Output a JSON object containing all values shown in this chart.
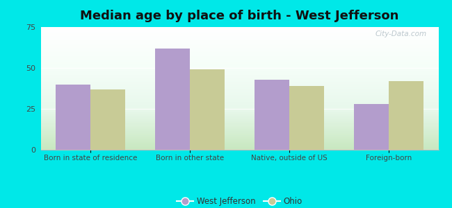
{
  "title": "Median age by place of birth - West Jefferson",
  "categories": [
    "Born in state of residence",
    "Born in other state",
    "Native, outside of US",
    "Foreign-born"
  ],
  "west_jefferson": [
    40,
    62,
    43,
    28
  ],
  "ohio": [
    37,
    49,
    39,
    42
  ],
  "west_jefferson_color": "#b39dcc",
  "ohio_color": "#c8cb96",
  "background_outer": "#00e8e8",
  "ylim": [
    0,
    75
  ],
  "yticks": [
    0,
    25,
    50,
    75
  ],
  "bar_width": 0.35,
  "title_fontsize": 13,
  "legend_labels": [
    "West Jefferson",
    "Ohio"
  ],
  "watermark": "City-Data.com"
}
